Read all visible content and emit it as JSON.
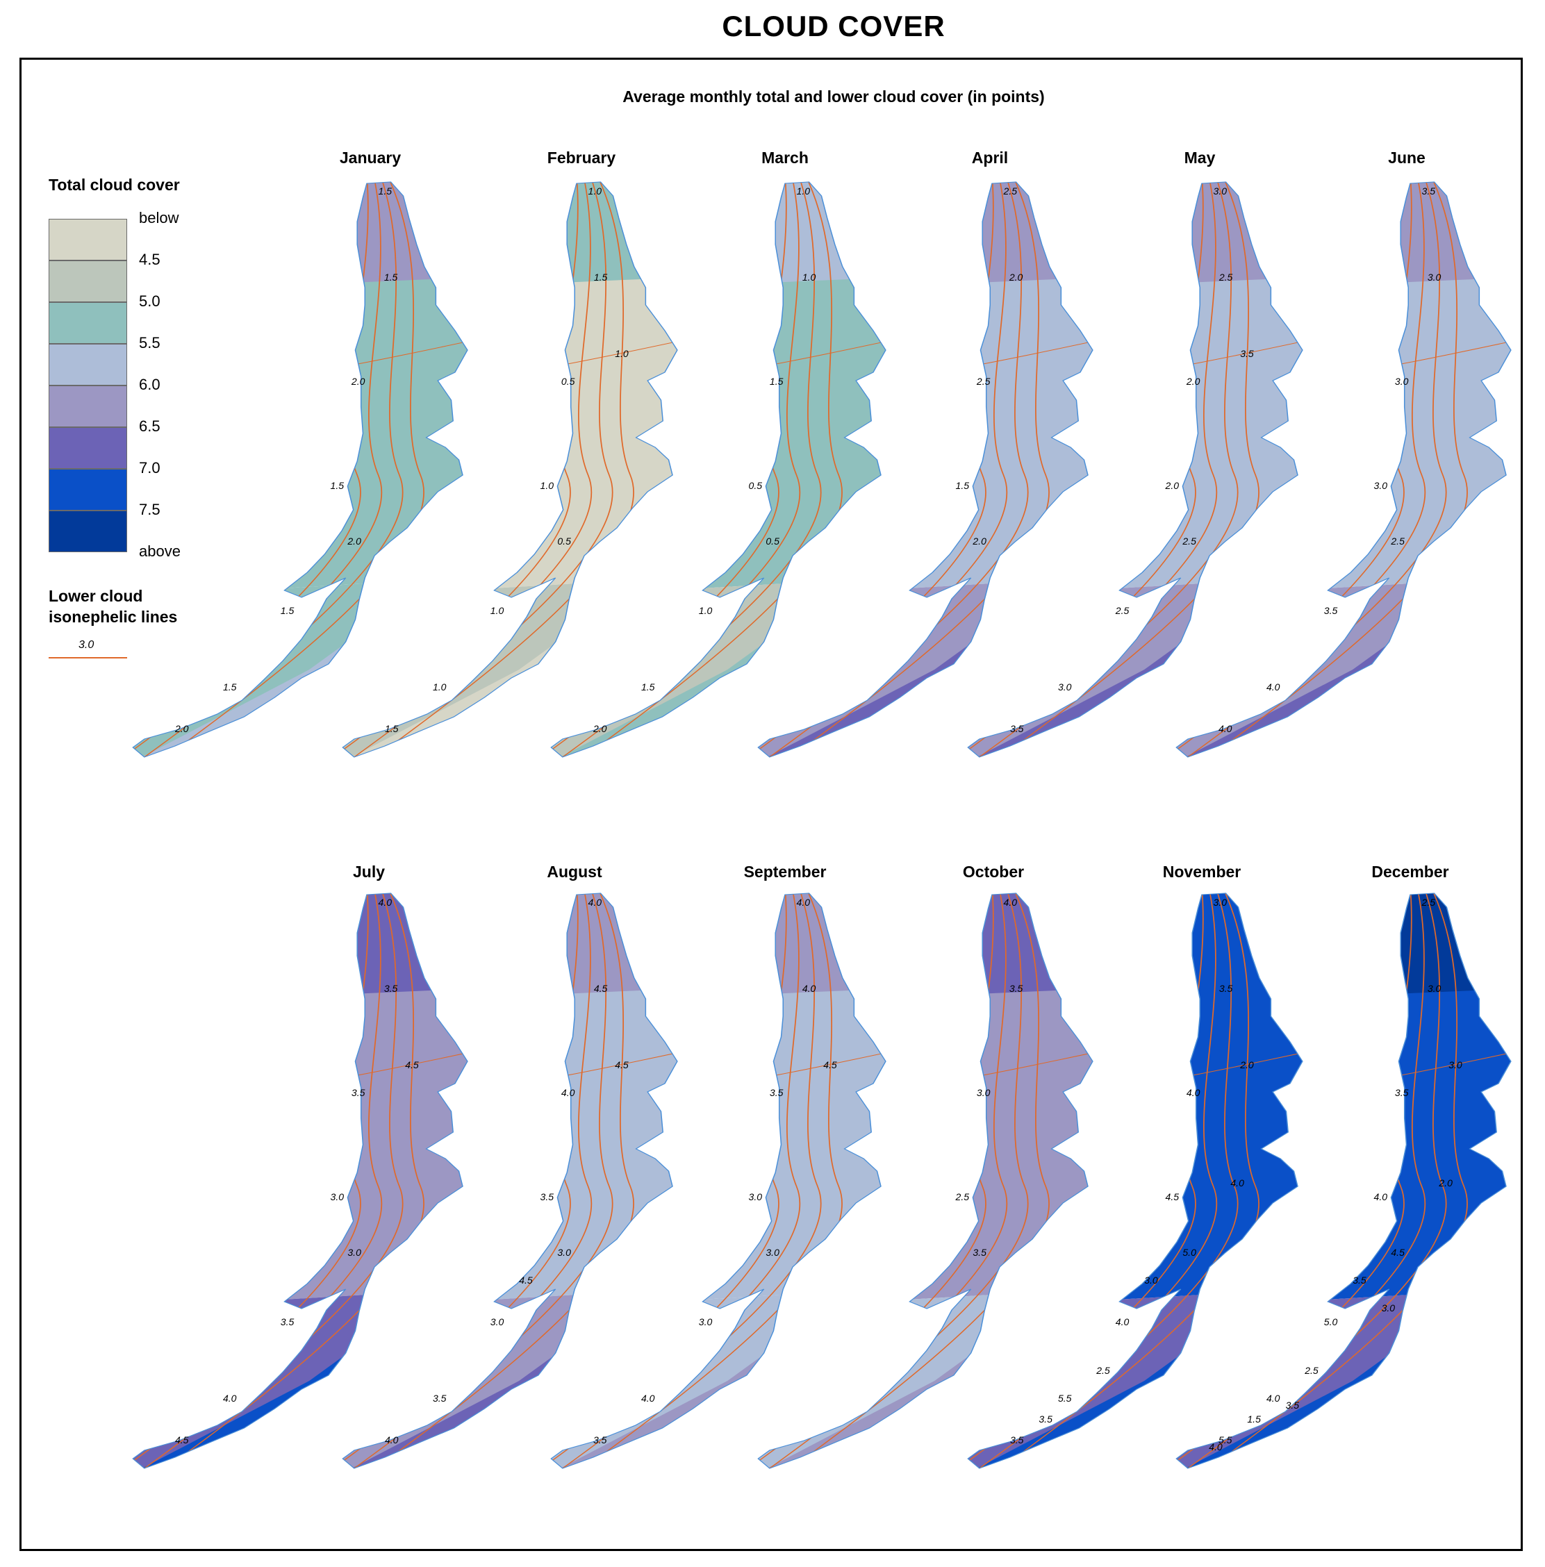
{
  "title": "CLOUD COVER",
  "subtitle": "Average monthly total and lower cloud cover (in points)",
  "legend": {
    "total_title": "Total cloud cover",
    "classes": [
      {
        "label": "below",
        "color": "#d6d6c7"
      },
      {
        "label": "4.5",
        "color": "#bcc6bb"
      },
      {
        "label": "5.0",
        "color": "#8fc0bd"
      },
      {
        "label": "5.5",
        "color": "#adbdd8"
      },
      {
        "label": "6.0",
        "color": "#9c97c3"
      },
      {
        "label": "6.5",
        "color": "#6c63b6"
      },
      {
        "label": "7.0",
        "color": "#0a50c8"
      },
      {
        "label": "7.5",
        "color": "#023a9a"
      },
      {
        "label": "above",
        "color": ""
      }
    ],
    "lower_title_1": "Lower cloud",
    "lower_title_2": "isonephelic lines",
    "line_sample": "3.0",
    "line_color": "#e0692a"
  },
  "months": [
    {
      "name": "January",
      "north": "#9c97c3",
      "middle": "#8fc0bd",
      "south": "#8fc0bd",
      "south_tip": "#adbdd8",
      "labels": [
        "1.5",
        "1.5",
        "2.0",
        "1.5",
        "2.0",
        "1.5",
        "1.5",
        "2.0"
      ]
    },
    {
      "name": "February",
      "north": "#8fc0bd",
      "middle": "#d6d6c7",
      "south": "#bcc6bb",
      "south_tip": "#d6d6c7",
      "labels": [
        "1.0",
        "1.5",
        "0.5",
        "1.0",
        "0.5",
        "1.0",
        "1.0",
        "1.5",
        "1.0"
      ]
    },
    {
      "name": "March",
      "north": "#adbdd8",
      "middle": "#8fc0bd",
      "south": "#bcc6bb",
      "south_tip": "#8fc0bd",
      "labels": [
        "1.0",
        "1.0",
        "1.5",
        "0.5",
        "0.5",
        "1.0",
        "1.5",
        "2.0"
      ]
    },
    {
      "name": "April",
      "north": "#9c97c3",
      "middle": "#adbdd8",
      "south": "#9c97c3",
      "south_tip": "#6c63b6",
      "labels": [
        "2.5",
        "2.0",
        "2.5",
        "1.5",
        "2.0"
      ]
    },
    {
      "name": "May",
      "north": "#9c97c3",
      "middle": "#adbdd8",
      "south": "#9c97c3",
      "south_tip": "#6c63b6",
      "labels": [
        "3.0",
        "2.5",
        "2.0",
        "2.0",
        "2.5",
        "2.5",
        "3.0",
        "3.5",
        "3.5"
      ]
    },
    {
      "name": "June",
      "north": "#9c97c3",
      "middle": "#adbdd8",
      "south": "#9c97c3",
      "south_tip": "#6c63b6",
      "labels": [
        "3.5",
        "3.0",
        "3.0",
        "3.0",
        "2.5",
        "3.5",
        "4.0",
        "4.0"
      ]
    },
    {
      "name": "July",
      "north": "#6c63b6",
      "middle": "#9c97c3",
      "south": "#6c63b6",
      "south_tip": "#0a50c8",
      "labels": [
        "4.0",
        "3.5",
        "3.5",
        "3.0",
        "3.0",
        "3.5",
        "4.0",
        "4.5",
        "4.5"
      ]
    },
    {
      "name": "August",
      "north": "#9c97c3",
      "middle": "#adbdd8",
      "south": "#9c97c3",
      "south_tip": "#6c63b6",
      "labels": [
        "4.0",
        "4.5",
        "4.0",
        "3.5",
        "3.0",
        "3.0",
        "3.5",
        "4.0",
        "4.5",
        "4.5"
      ]
    },
    {
      "name": "September",
      "north": "#9c97c3",
      "middle": "#adbdd8",
      "south": "#adbdd8",
      "south_tip": "#9c97c3",
      "labels": [
        "4.0",
        "4.0",
        "3.5",
        "3.0",
        "3.0",
        "3.0",
        "4.0",
        "3.5",
        "4.5"
      ]
    },
    {
      "name": "October",
      "north": "#6c63b6",
      "middle": "#9c97c3",
      "south": "#adbdd8",
      "south_tip": "#9c97c3",
      "labels": [
        "4.0",
        "3.5",
        "3.0",
        "2.5",
        "3.5"
      ]
    },
    {
      "name": "November",
      "north": "#0a50c8",
      "middle": "#0a50c8",
      "south": "#6c63b6",
      "south_tip": "#0a50c8",
      "labels": [
        "3.0",
        "3.5",
        "4.0",
        "4.5",
        "5.0",
        "4.0",
        "5.5",
        "3.5",
        "2.0",
        "3.0",
        "2.5",
        "3.5",
        "4.0"
      ]
    },
    {
      "name": "December",
      "north": "#023a9a",
      "middle": "#0a50c8",
      "south": "#6c63b6",
      "south_tip": "#0a50c8",
      "labels": [
        "2.5",
        "3.0",
        "3.5",
        "4.0",
        "4.5",
        "5.0",
        "4.0",
        "5.5",
        "3.0",
        "3.5",
        "2.5",
        "1.5",
        "2.0",
        "3.0",
        "3.5",
        "4.0"
      ]
    }
  ]
}
